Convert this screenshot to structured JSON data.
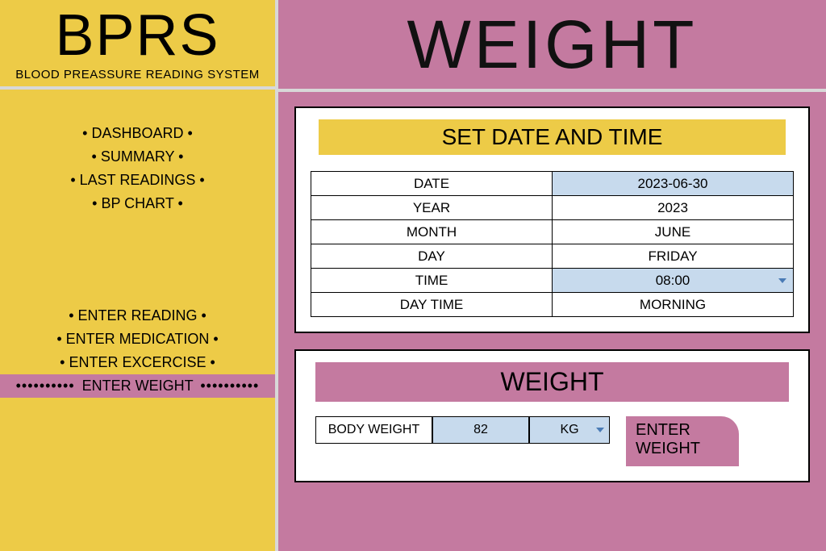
{
  "colors": {
    "yellow": "#edcb47",
    "pink": "#c47aa0",
    "cell_blue": "#c7daed",
    "divider_gray": "#d8d8d8"
  },
  "logo": {
    "title": "BPRS",
    "subtitle": "BLOOD PREASSURE READING SYSTEM"
  },
  "nav": {
    "group1": [
      "• DASHBOARD •",
      "• SUMMARY •",
      "• LAST READINGS •",
      "• BP CHART •"
    ],
    "group2": [
      "• ENTER READING •",
      "• ENTER MEDICATION •",
      "• ENTER EXCERCISE •"
    ],
    "active": "ENTER WEIGHT"
  },
  "page_title": "WEIGHT",
  "date_section": {
    "header": "SET DATE AND TIME",
    "rows": [
      {
        "label": "DATE",
        "value": "2023-06-30",
        "input": true,
        "dropdown": false
      },
      {
        "label": "YEAR",
        "value": "2023",
        "input": false,
        "dropdown": false
      },
      {
        "label": "MONTH",
        "value": "JUNE",
        "input": false,
        "dropdown": false
      },
      {
        "label": "DAY",
        "value": "FRIDAY",
        "input": false,
        "dropdown": false
      },
      {
        "label": "TIME",
        "value": "08:00",
        "input": true,
        "dropdown": true
      },
      {
        "label": "DAY TIME",
        "value": "MORNING",
        "input": false,
        "dropdown": false
      }
    ]
  },
  "weight_section": {
    "header": "WEIGHT",
    "label": "BODY WEIGHT",
    "value": "82",
    "unit": "KG",
    "button": "ENTER WEIGHT"
  }
}
